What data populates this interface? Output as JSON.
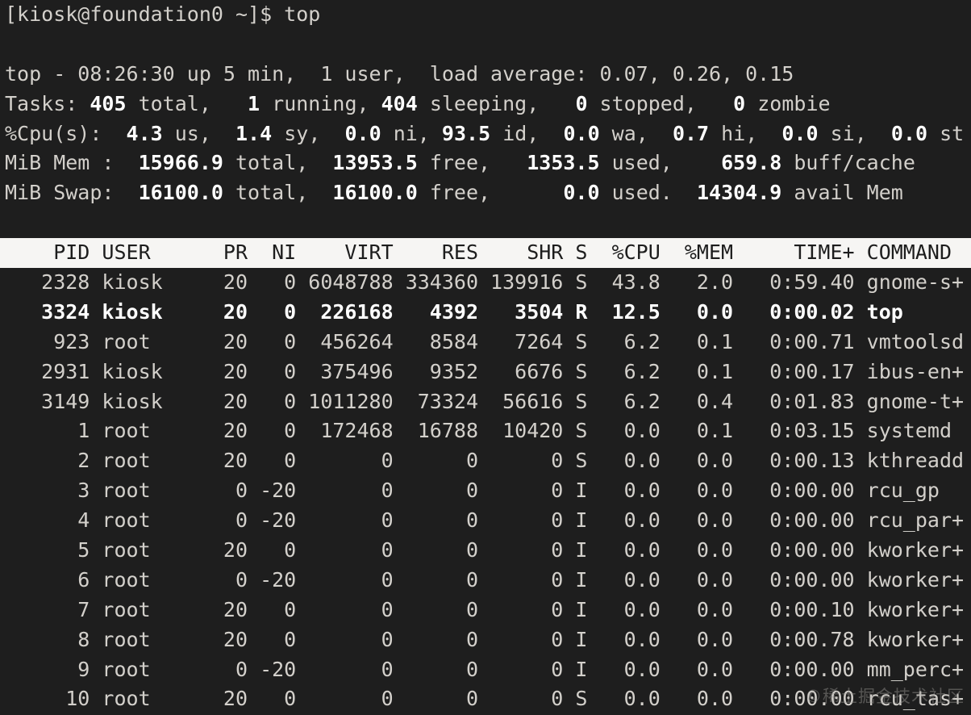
{
  "colors": {
    "background": "#1e1e1e",
    "foreground": "#d3d0cb",
    "bold_foreground": "#ffffff",
    "table_header_background": "#f6f5f3",
    "table_header_foreground": "#1d1d1d",
    "watermark": "#9a9895"
  },
  "prompt": {
    "text": "[kiosk@foundation0 ~]$ top"
  },
  "summary_lines": [
    {
      "name": "uptime-line",
      "segments": [
        {
          "text": "top - 08:26:30 up 5 min,  1 user,  load average: 0.07, 0.26, 0.15",
          "bold": false
        }
      ]
    },
    {
      "name": "tasks-line",
      "segments": [
        {
          "text": "Tasks: ",
          "bold": false
        },
        {
          "text": "405",
          "bold": true
        },
        {
          "text": " total,   ",
          "bold": false
        },
        {
          "text": "1",
          "bold": true
        },
        {
          "text": " running, ",
          "bold": false
        },
        {
          "text": "404",
          "bold": true
        },
        {
          "text": " sleeping,   ",
          "bold": false
        },
        {
          "text": "0",
          "bold": true
        },
        {
          "text": " stopped,   ",
          "bold": false
        },
        {
          "text": "0",
          "bold": true
        },
        {
          "text": " zombie",
          "bold": false
        }
      ]
    },
    {
      "name": "cpu-line",
      "segments": [
        {
          "text": "%Cpu(s):",
          "bold": false
        },
        {
          "text": "  4.3",
          "bold": true
        },
        {
          "text": " us,",
          "bold": false
        },
        {
          "text": "  1.4",
          "bold": true
        },
        {
          "text": " sy,",
          "bold": false
        },
        {
          "text": "  0.0",
          "bold": true
        },
        {
          "text": " ni,",
          "bold": false
        },
        {
          "text": " 93.5",
          "bold": true
        },
        {
          "text": " id,",
          "bold": false
        },
        {
          "text": "  0.0",
          "bold": true
        },
        {
          "text": " wa,",
          "bold": false
        },
        {
          "text": "  0.7",
          "bold": true
        },
        {
          "text": " hi,",
          "bold": false
        },
        {
          "text": "  0.0",
          "bold": true
        },
        {
          "text": " si,",
          "bold": false
        },
        {
          "text": "  0.0",
          "bold": true
        },
        {
          "text": " st",
          "bold": false
        }
      ]
    },
    {
      "name": "mem-line",
      "segments": [
        {
          "text": "MiB Mem :",
          "bold": false
        },
        {
          "text": "  15966.9",
          "bold": true
        },
        {
          "text": " total,",
          "bold": false
        },
        {
          "text": "  13953.5",
          "bold": true
        },
        {
          "text": " free,",
          "bold": false
        },
        {
          "text": "   1353.5",
          "bold": true
        },
        {
          "text": " used,",
          "bold": false
        },
        {
          "text": "    659.8",
          "bold": true
        },
        {
          "text": " buff/cache",
          "bold": false
        }
      ]
    },
    {
      "name": "swap-line",
      "segments": [
        {
          "text": "MiB Swap:",
          "bold": false
        },
        {
          "text": "  16100.0",
          "bold": true
        },
        {
          "text": " total,",
          "bold": false
        },
        {
          "text": "  16100.0",
          "bold": true
        },
        {
          "text": " free,",
          "bold": false
        },
        {
          "text": "      0.0",
          "bold": true
        },
        {
          "text": " used.",
          "bold": false
        },
        {
          "text": "  14304.9",
          "bold": true
        },
        {
          "text": " avail Mem",
          "bold": false
        }
      ]
    }
  ],
  "process_table": {
    "header_text": "    PID USER      PR  NI    VIRT    RES    SHR S  %CPU  %MEM     TIME+ COMMAND",
    "columns": [
      "PID",
      "USER",
      "PR",
      "NI",
      "VIRT",
      "RES",
      "SHR",
      "S",
      "%CPU",
      "%MEM",
      "TIME+",
      "COMMAND"
    ],
    "rows": [
      {
        "text": "   2328 kiosk     20   0 6048788 334360 139916 S  43.8   2.0   0:59.40 gnome-s+",
        "bold": false
      },
      {
        "text": "   3324 kiosk     20   0  226168   4392   3504 R  12.5   0.0   0:00.02 top",
        "bold": true
      },
      {
        "text": "    923 root      20   0  456264   8584   7264 S   6.2   0.1   0:00.71 vmtoolsd",
        "bold": false
      },
      {
        "text": "   2931 kiosk     20   0  375496   9352   6676 S   6.2   0.1   0:00.17 ibus-en+",
        "bold": false
      },
      {
        "text": "   3149 kiosk     20   0 1011280  73324  56616 S   6.2   0.4   0:01.83 gnome-t+",
        "bold": false
      },
      {
        "text": "      1 root      20   0  172468  16788  10420 S   0.0   0.1   0:03.15 systemd",
        "bold": false
      },
      {
        "text": "      2 root      20   0       0      0      0 S   0.0   0.0   0:00.13 kthreadd",
        "bold": false
      },
      {
        "text": "      3 root       0 -20       0      0      0 I   0.0   0.0   0:00.00 rcu_gp",
        "bold": false
      },
      {
        "text": "      4 root       0 -20       0      0      0 I   0.0   0.0   0:00.00 rcu_par+",
        "bold": false
      },
      {
        "text": "      5 root      20   0       0      0      0 I   0.0   0.0   0:00.00 kworker+",
        "bold": false
      },
      {
        "text": "      6 root       0 -20       0      0      0 I   0.0   0.0   0:00.00 kworker+",
        "bold": false
      },
      {
        "text": "      7 root      20   0       0      0      0 I   0.0   0.0   0:00.10 kworker+",
        "bold": false
      },
      {
        "text": "      8 root      20   0       0      0      0 I   0.0   0.0   0:00.78 kworker+",
        "bold": false
      },
      {
        "text": "      9 root       0 -20       0      0      0 I   0.0   0.0   0:00.00 mm_perc+",
        "bold": false
      },
      {
        "text": "     10 root      20   0       0      0      0 S   0.0   0.0   0:00.00 rcu_tas+",
        "bold": false
      }
    ]
  },
  "watermark": {
    "text": "©稀土掘金技术社区"
  }
}
